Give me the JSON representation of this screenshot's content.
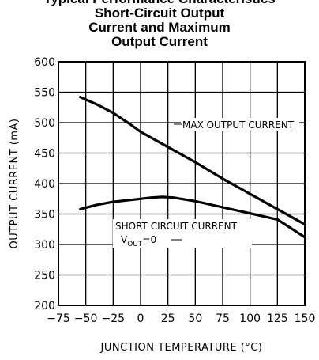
{
  "chart_data": {
    "type": "line",
    "title_partial": "Typical Performance Characteristics",
    "title_lines": [
      "Short-Circuit Output",
      "Current and Maximum",
      "Output Current"
    ],
    "xlabel": "JUNCTION TEMPERATURE (°C)",
    "ylabel": "OUTPUT CURRENT (mA)",
    "xlim": [
      -75,
      150
    ],
    "ylim": [
      200,
      600
    ],
    "x_ticks": [
      -75,
      -50,
      -25,
      0,
      25,
      50,
      75,
      100,
      125,
      150
    ],
    "y_ticks": [
      200,
      250,
      300,
      350,
      400,
      450,
      500,
      550,
      600
    ],
    "grid": true,
    "series": [
      {
        "name": "MAX OUTPUT CURRENT",
        "x": [
          -55,
          -40,
          -25,
          -10,
          0,
          25,
          50,
          75,
          100,
          125,
          150
        ],
        "y": [
          542,
          530,
          516,
          498,
          485,
          460,
          435,
          408,
          383,
          358,
          333
        ]
      },
      {
        "name": "SHORT CIRCUIT CURRENT",
        "x": [
          -55,
          -40,
          -25,
          -10,
          0,
          10,
          20,
          30,
          50,
          75,
          100,
          125,
          150
        ],
        "y": [
          358,
          365,
          370,
          373,
          375,
          377,
          378,
          377,
          371,
          361,
          351,
          341,
          312
        ]
      }
    ],
    "annotations": {
      "max": "MAX OUTPUT CURRENT",
      "sc_line1": "SHORT CIRCUIT CURRENT",
      "sc_v": "V",
      "sc_sub": "OUT",
      "sc_eq": "=0"
    }
  }
}
